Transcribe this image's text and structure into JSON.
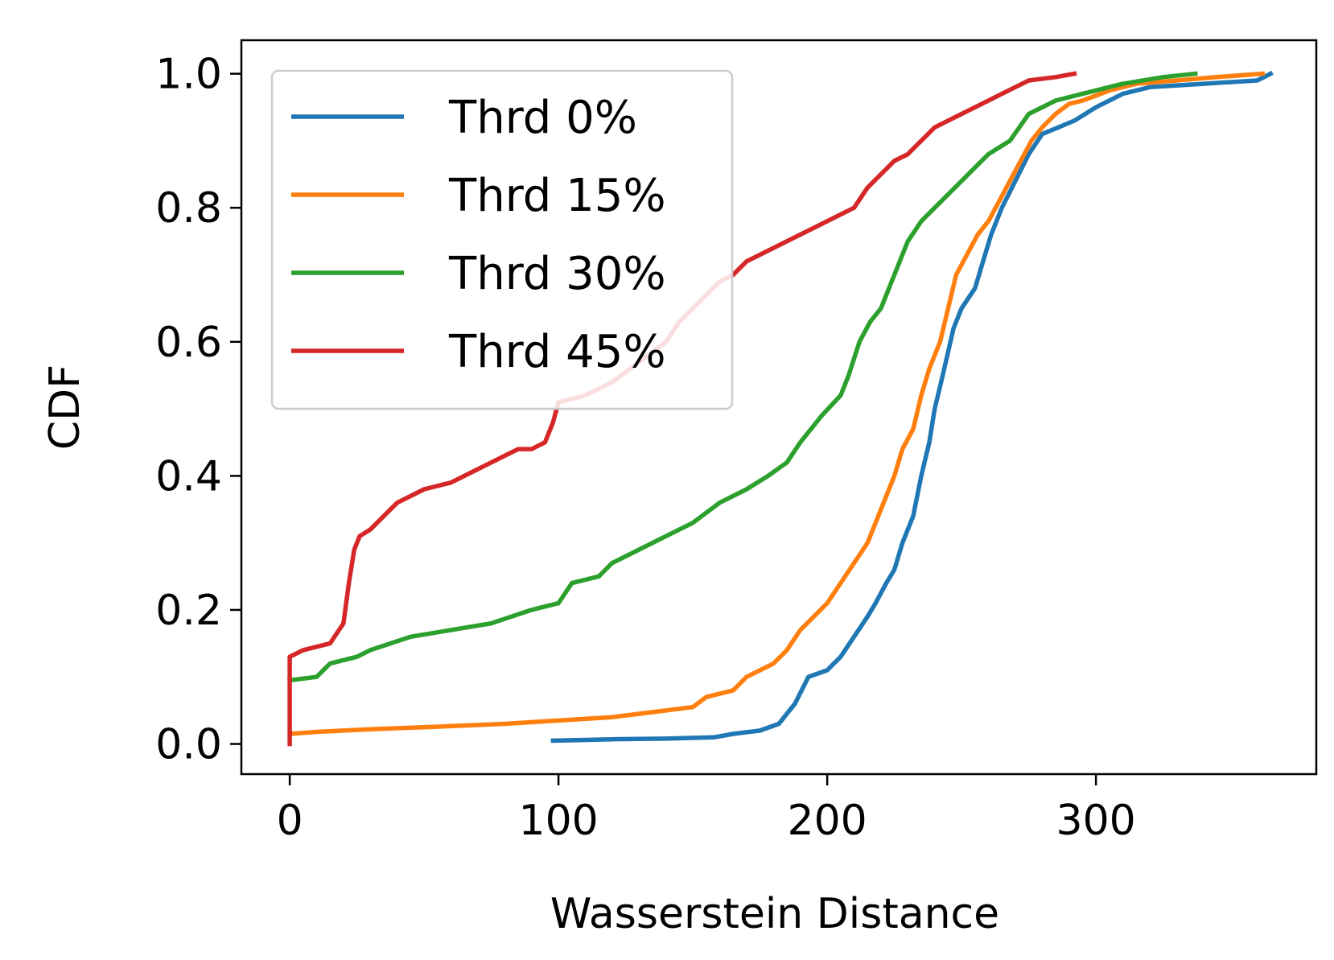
{
  "chart_data": {
    "type": "line",
    "xlabel": "Wasserstein Distance",
    "ylabel": "CDF",
    "xlim": [
      -18,
      382
    ],
    "ylim": [
      -0.045,
      1.05
    ],
    "xticks": [
      0,
      100,
      200,
      300
    ],
    "xtick_labels": [
      "0",
      "100",
      "200",
      "300"
    ],
    "yticks": [
      0.0,
      0.2,
      0.4,
      0.6,
      0.8,
      1.0
    ],
    "ytick_labels": [
      "0.0",
      "0.2",
      "0.4",
      "0.6",
      "0.8",
      "1.0"
    ],
    "grid": false,
    "legend_position": "upper-left",
    "series": [
      {
        "name": "Thrd 0%",
        "color": "#1f77b4",
        "points": [
          [
            98,
            0.005
          ],
          [
            120,
            0.007
          ],
          [
            140,
            0.008
          ],
          [
            158,
            0.01
          ],
          [
            165,
            0.015
          ],
          [
            175,
            0.02
          ],
          [
            182,
            0.03
          ],
          [
            188,
            0.06
          ],
          [
            193,
            0.1
          ],
          [
            200,
            0.11
          ],
          [
            205,
            0.13
          ],
          [
            210,
            0.16
          ],
          [
            215,
            0.19
          ],
          [
            218,
            0.21
          ],
          [
            222,
            0.24
          ],
          [
            225,
            0.26
          ],
          [
            228,
            0.3
          ],
          [
            232,
            0.34
          ],
          [
            235,
            0.4
          ],
          [
            238,
            0.45
          ],
          [
            240,
            0.5
          ],
          [
            243,
            0.55
          ],
          [
            247,
            0.62
          ],
          [
            250,
            0.65
          ],
          [
            255,
            0.68
          ],
          [
            258,
            0.72
          ],
          [
            261,
            0.76
          ],
          [
            265,
            0.8
          ],
          [
            270,
            0.84
          ],
          [
            275,
            0.88
          ],
          [
            280,
            0.91
          ],
          [
            286,
            0.92
          ],
          [
            292,
            0.93
          ],
          [
            300,
            0.95
          ],
          [
            310,
            0.97
          ],
          [
            320,
            0.98
          ],
          [
            340,
            0.985
          ],
          [
            360,
            0.99
          ],
          [
            365,
            1.0
          ]
        ]
      },
      {
        "name": "Thrd 15%",
        "color": "#ff7f0e",
        "points": [
          [
            0,
            0.015
          ],
          [
            10,
            0.018
          ],
          [
            30,
            0.022
          ],
          [
            50,
            0.025
          ],
          [
            80,
            0.03
          ],
          [
            100,
            0.035
          ],
          [
            120,
            0.04
          ],
          [
            140,
            0.05
          ],
          [
            150,
            0.055
          ],
          [
            155,
            0.07
          ],
          [
            165,
            0.08
          ],
          [
            170,
            0.1
          ],
          [
            180,
            0.12
          ],
          [
            185,
            0.14
          ],
          [
            190,
            0.17
          ],
          [
            195,
            0.19
          ],
          [
            200,
            0.21
          ],
          [
            205,
            0.24
          ],
          [
            210,
            0.27
          ],
          [
            215,
            0.3
          ],
          [
            220,
            0.35
          ],
          [
            225,
            0.4
          ],
          [
            228,
            0.44
          ],
          [
            232,
            0.47
          ],
          [
            235,
            0.52
          ],
          [
            238,
            0.56
          ],
          [
            242,
            0.6
          ],
          [
            245,
            0.65
          ],
          [
            248,
            0.7
          ],
          [
            252,
            0.73
          ],
          [
            256,
            0.76
          ],
          [
            260,
            0.78
          ],
          [
            264,
            0.81
          ],
          [
            268,
            0.84
          ],
          [
            272,
            0.87
          ],
          [
            276,
            0.9
          ],
          [
            280,
            0.92
          ],
          [
            285,
            0.94
          ],
          [
            290,
            0.955
          ],
          [
            295,
            0.96
          ],
          [
            305,
            0.975
          ],
          [
            315,
            0.985
          ],
          [
            330,
            0.99
          ],
          [
            345,
            0.995
          ],
          [
            362,
            1.0
          ]
        ]
      },
      {
        "name": "Thrd 30%",
        "color": "#2ca02c",
        "points": [
          [
            0,
            0.095
          ],
          [
            10,
            0.1
          ],
          [
            15,
            0.12
          ],
          [
            25,
            0.13
          ],
          [
            30,
            0.14
          ],
          [
            45,
            0.16
          ],
          [
            60,
            0.17
          ],
          [
            75,
            0.18
          ],
          [
            90,
            0.2
          ],
          [
            100,
            0.21
          ],
          [
            105,
            0.24
          ],
          [
            115,
            0.25
          ],
          [
            120,
            0.27
          ],
          [
            130,
            0.29
          ],
          [
            140,
            0.31
          ],
          [
            150,
            0.33
          ],
          [
            160,
            0.36
          ],
          [
            170,
            0.38
          ],
          [
            178,
            0.4
          ],
          [
            185,
            0.42
          ],
          [
            190,
            0.45
          ],
          [
            198,
            0.49
          ],
          [
            205,
            0.52
          ],
          [
            208,
            0.55
          ],
          [
            212,
            0.6
          ],
          [
            216,
            0.63
          ],
          [
            220,
            0.65
          ],
          [
            225,
            0.7
          ],
          [
            230,
            0.75
          ],
          [
            235,
            0.78
          ],
          [
            240,
            0.8
          ],
          [
            245,
            0.82
          ],
          [
            250,
            0.84
          ],
          [
            255,
            0.86
          ],
          [
            260,
            0.88
          ],
          [
            268,
            0.9
          ],
          [
            275,
            0.94
          ],
          [
            285,
            0.96
          ],
          [
            295,
            0.97
          ],
          [
            310,
            0.985
          ],
          [
            325,
            0.995
          ],
          [
            337,
            1.0
          ]
        ]
      },
      {
        "name": "Thrd 45%",
        "color": "#d62728",
        "points": [
          [
            0,
            0.0
          ],
          [
            0,
            0.13
          ],
          [
            5,
            0.14
          ],
          [
            15,
            0.15
          ],
          [
            20,
            0.18
          ],
          [
            22,
            0.24
          ],
          [
            24,
            0.29
          ],
          [
            26,
            0.31
          ],
          [
            30,
            0.32
          ],
          [
            35,
            0.34
          ],
          [
            40,
            0.36
          ],
          [
            45,
            0.37
          ],
          [
            50,
            0.38
          ],
          [
            60,
            0.39
          ],
          [
            70,
            0.41
          ],
          [
            75,
            0.42
          ],
          [
            80,
            0.43
          ],
          [
            85,
            0.44
          ],
          [
            90,
            0.44
          ],
          [
            95,
            0.45
          ],
          [
            98,
            0.48
          ],
          [
            100,
            0.51
          ],
          [
            110,
            0.52
          ],
          [
            120,
            0.54
          ],
          [
            130,
            0.57
          ],
          [
            140,
            0.6
          ],
          [
            145,
            0.63
          ],
          [
            150,
            0.65
          ],
          [
            155,
            0.67
          ],
          [
            160,
            0.69
          ],
          [
            165,
            0.7
          ],
          [
            170,
            0.72
          ],
          [
            180,
            0.74
          ],
          [
            190,
            0.76
          ],
          [
            200,
            0.78
          ],
          [
            210,
            0.8
          ],
          [
            215,
            0.83
          ],
          [
            220,
            0.85
          ],
          [
            225,
            0.87
          ],
          [
            230,
            0.88
          ],
          [
            235,
            0.9
          ],
          [
            240,
            0.92
          ],
          [
            245,
            0.93
          ],
          [
            250,
            0.94
          ],
          [
            255,
            0.95
          ],
          [
            260,
            0.96
          ],
          [
            265,
            0.97
          ],
          [
            270,
            0.98
          ],
          [
            275,
            0.99
          ],
          [
            285,
            0.995
          ],
          [
            292,
            1.0
          ]
        ]
      }
    ]
  }
}
